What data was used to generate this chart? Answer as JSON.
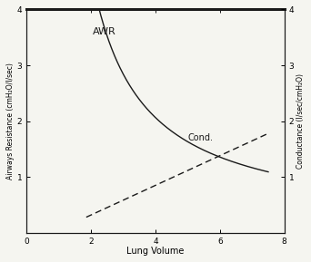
{
  "title": "",
  "xlabel": "Lung Volume",
  "ylabel_left": "Airways Resistance (cmH₂O/l/sec)",
  "ylabel_right": "Conductance (l/sec/cmH₂O)",
  "xlim": [
    0,
    8
  ],
  "ylim_left": [
    0,
    4
  ],
  "ylim_right": [
    0,
    4
  ],
  "xticks": [
    0,
    2,
    4,
    6,
    8
  ],
  "yticks_left": [
    1,
    2,
    3,
    4
  ],
  "yticks_right": [
    1,
    2,
    3,
    4
  ],
  "awr_label": "AWR",
  "cond_label": "Cond.",
  "background_color": "#f5f5f0",
  "line_color": "#1a1a1a",
  "awr_x_start": 1.85,
  "awr_x_end": 7.5,
  "cond_x_start": 1.85,
  "cond_x_end": 7.5,
  "awr_a": 6.8,
  "awr_b": -0.5,
  "awr_c": 0.12,
  "cond_y_at_x2": 0.28,
  "cond_y_at_x75": 1.78
}
